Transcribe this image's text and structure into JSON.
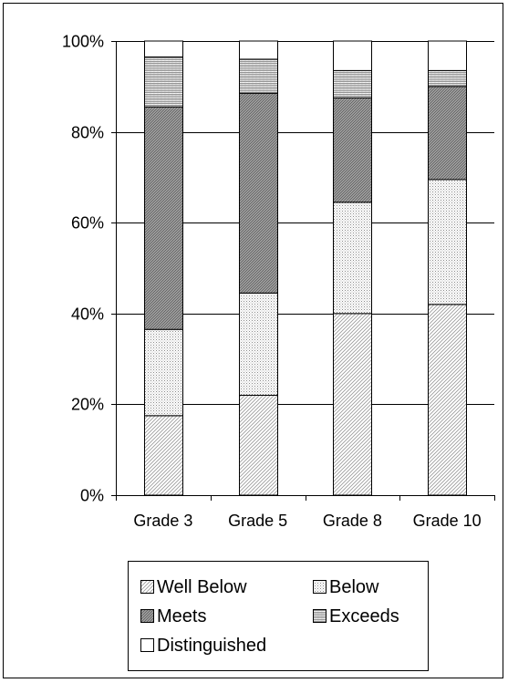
{
  "chart_data": {
    "type": "bar",
    "stacked": true,
    "categories": [
      "Grade 3",
      "Grade 5",
      "Grade 8",
      "Grade 10"
    ],
    "ylim": [
      0,
      100
    ],
    "yticks": [
      "0%",
      "20%",
      "40%",
      "60%",
      "80%",
      "100%"
    ],
    "ytick_values": [
      0,
      20,
      40,
      60,
      80,
      100
    ],
    "grid": "horizontal",
    "legend_position": "bottom",
    "series": [
      {
        "name": "Well Below",
        "pattern": "light-diagonal",
        "values": [
          17.5,
          22,
          40,
          42
        ]
      },
      {
        "name": "Below",
        "pattern": "dots",
        "values": [
          19,
          22.5,
          24.5,
          27.5
        ]
      },
      {
        "name": "Meets",
        "pattern": "dense-diagonal",
        "values": [
          49,
          44,
          23,
          20.5
        ]
      },
      {
        "name": "Exceeds",
        "pattern": "zigzag",
        "values": [
          11,
          7.5,
          6,
          3.5
        ]
      },
      {
        "name": "Distinguished",
        "pattern": "solid-white",
        "values": [
          3.5,
          4,
          6.5,
          6.5
        ]
      }
    ]
  }
}
